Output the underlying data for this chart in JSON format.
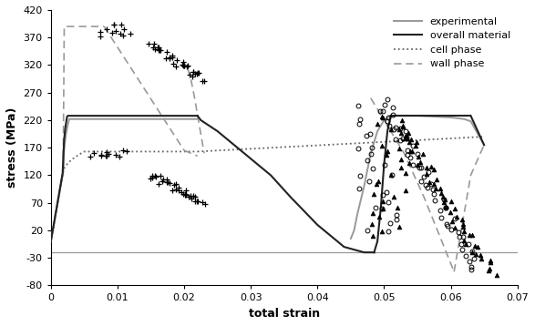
{
  "xlabel": "total strain",
  "ylabel": "stress (MPa)",
  "xlim": [
    0,
    0.07
  ],
  "ylim": [
    -80,
    420
  ],
  "yticks": [
    -80,
    -30,
    20,
    70,
    120,
    170,
    220,
    270,
    320,
    370,
    420
  ],
  "xticks": [
    0,
    0.01,
    0.02,
    0.03,
    0.04,
    0.05,
    0.06,
    0.07
  ],
  "exp_color": "#999999",
  "overall_color": "#222222",
  "cell_color": "#666666",
  "wall_color": "#999999",
  "hline_y": -20,
  "legend_labels": [
    "experimental",
    "overall material",
    "cell phase",
    "wall phase"
  ]
}
